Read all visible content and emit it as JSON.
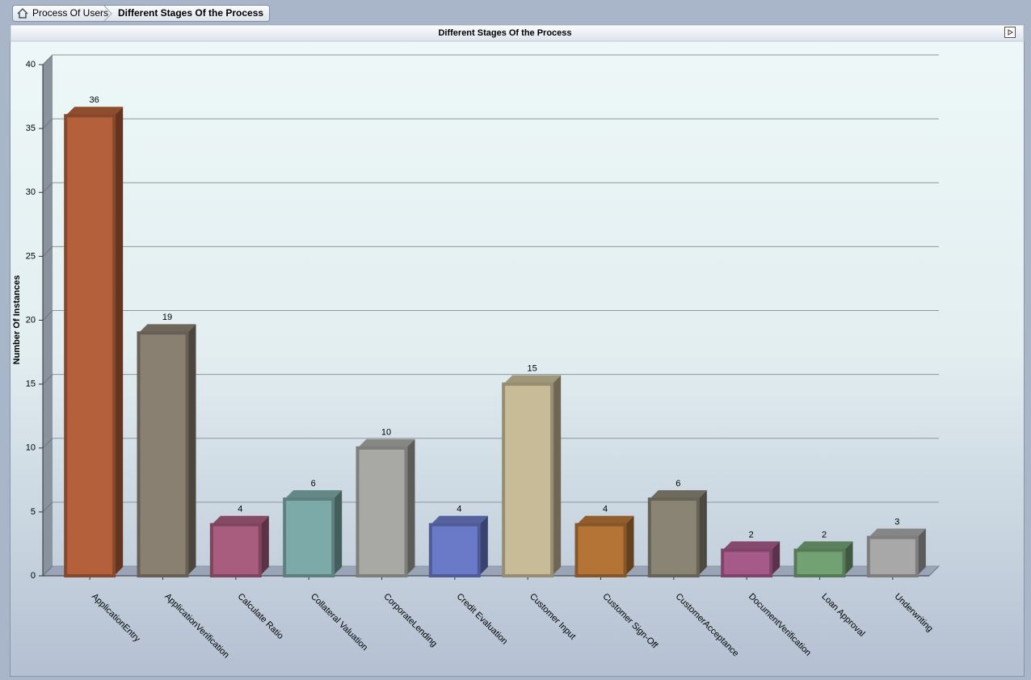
{
  "breadcrumb": [
    "Process Of Users",
    "Different Stages Of the Process"
  ],
  "chart_data": {
    "type": "bar3d",
    "title": "Different Stages Of the Process",
    "y_label": "Number Of Instances",
    "categories": [
      "ApplicationEntry",
      "ApplicationVerification",
      "Calculate Ratio",
      "Collateral Valuation",
      "CorporateLending",
      "Credit Evaluation",
      "Customer Input",
      "Customer Sign-Off",
      "CustomerAcceptance",
      "DocumentVerification",
      "Loan Approval",
      "Underwriting"
    ],
    "values": [
      36,
      19,
      4,
      6,
      10,
      4,
      15,
      4,
      6,
      2,
      2,
      3
    ],
    "colors": [
      "#b4603a",
      "#8a8072",
      "#a85c7e",
      "#7caaa8",
      "#a8a8a4",
      "#6a7ac8",
      "#c8bc98",
      "#b47436",
      "#8a8474",
      "#a65a8a",
      "#72a274",
      "#a8a8a8"
    ],
    "ylim": [
      0,
      40
    ],
    "yticks": [
      0,
      5,
      10,
      15,
      20,
      25,
      30,
      35,
      40
    ],
    "grid": true
  }
}
